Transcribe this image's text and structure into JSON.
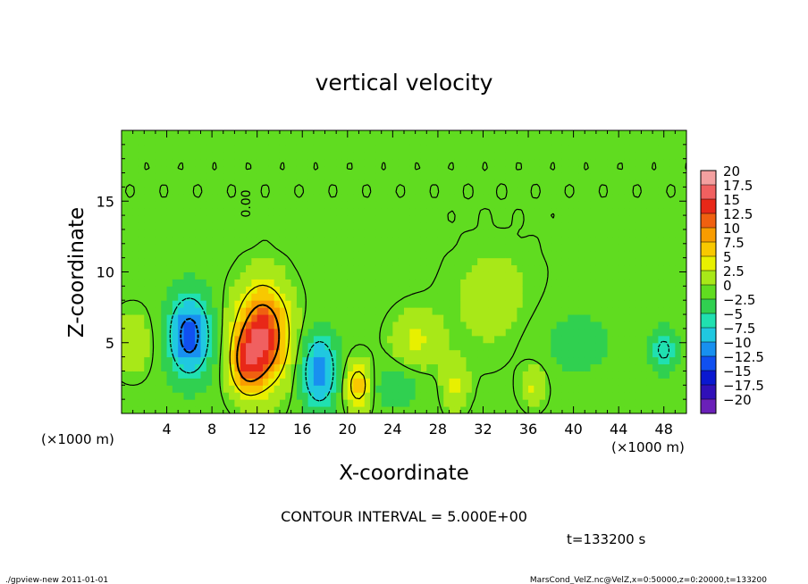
{
  "chart_data": {
    "type": "heatmap",
    "title": "vertical velocity",
    "xlabel": "X-coordinate",
    "ylabel": "Z-coordinate",
    "x_unit_left": "(×1000 m)",
    "x_unit_right": "(×1000 m)",
    "xlim": [
      0,
      50
    ],
    "ylim": [
      0,
      20
    ],
    "xticks": [
      4,
      8,
      12,
      16,
      20,
      24,
      28,
      32,
      36,
      40,
      44,
      48
    ],
    "yticks": [
      5,
      10,
      15
    ],
    "contour_interval_text": "CONTOUR INTERVAL = 5.000E+00",
    "time_text": "t=133200 s",
    "zero_contour_label": "0.00",
    "colorbar": {
      "labels": [
        "20",
        "17.5",
        "15",
        "12.5",
        "10",
        "7.5",
        "5",
        "2.5",
        "0",
        "−2.5",
        "−5",
        "−7.5",
        "−10",
        "−12.5",
        "−15",
        "−17.5",
        "−20"
      ],
      "colors": [
        "#f4a0a0",
        "#f06060",
        "#e82818",
        "#f06010",
        "#f89c00",
        "#f8c800",
        "#e8f000",
        "#a8e818",
        "#60dc20",
        "#30d050",
        "#20e0b0",
        "#20c8e0",
        "#1890f0",
        "#1050f0",
        "#0a18d0",
        "#3010b8",
        "#6a20b8"
      ]
    },
    "features": [
      {
        "x": 12.5,
        "z": 5.5,
        "peak": 15,
        "sx": 1.6,
        "sz": 2.4
      },
      {
        "x": 11.0,
        "z": 3.5,
        "peak": 8,
        "sx": 1.0,
        "sz": 1.5
      },
      {
        "x": 6.0,
        "z": 5.5,
        "peak": -12,
        "sx": 1.3,
        "sz": 2.0
      },
      {
        "x": 17.5,
        "z": 3.0,
        "peak": -10,
        "sx": 1.1,
        "sz": 1.8
      },
      {
        "x": 21.0,
        "z": 2.0,
        "peak": 8,
        "sx": 0.9,
        "sz": 1.2
      },
      {
        "x": 26.0,
        "z": 5.0,
        "peak": 4,
        "sx": 1.5,
        "sz": 1.5
      },
      {
        "x": 29.5,
        "z": 2.0,
        "peak": 4,
        "sx": 0.8,
        "sz": 1.2
      },
      {
        "x": 36.5,
        "z": 2.0,
        "peak": 4,
        "sx": 0.8,
        "sz": 1.0
      },
      {
        "x": 48.0,
        "z": 4.5,
        "peak": -6,
        "sx": 0.8,
        "sz": 1.0
      },
      {
        "x": 1.0,
        "z": 5.0,
        "peak": 3,
        "sx": 1.2,
        "sz": 1.5
      },
      {
        "x": 24.0,
        "z": 2.0,
        "peak": -3,
        "sx": 2.0,
        "sz": 1.2
      },
      {
        "x": 40.0,
        "z": 5.0,
        "peak": -2,
        "sx": 3.0,
        "sz": 2.0
      },
      {
        "x": 33.0,
        "z": 8.0,
        "peak": 2,
        "sx": 3.0,
        "sz": 3.0
      }
    ]
  },
  "footer": {
    "left": "./gpview-new 2011-01-01",
    "right": "MarsCond_VelZ.nc@VelZ,x=0:50000,z=0:20000,t=133200"
  }
}
